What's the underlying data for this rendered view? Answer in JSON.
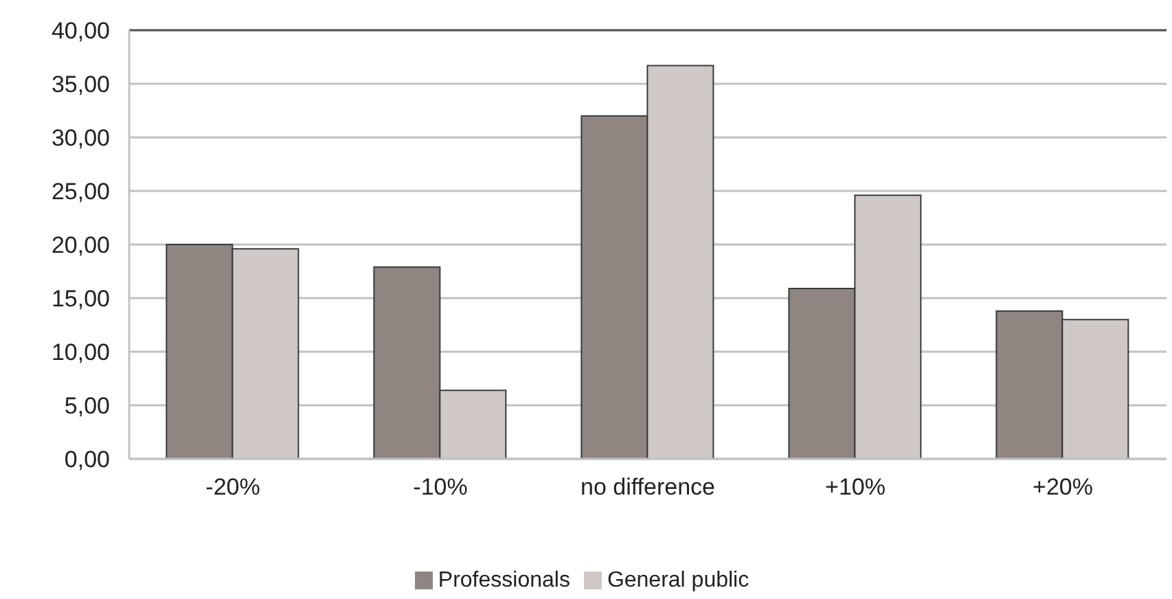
{
  "chart_data": {
    "type": "bar",
    "categories": [
      "-20%",
      "-10%",
      "no difference",
      "+10%",
      "+20%"
    ],
    "series": [
      {
        "name": "Professionals",
        "color": "#8f8682",
        "values": [
          20.0,
          17.9,
          32.0,
          15.9,
          13.8
        ]
      },
      {
        "name": "General public",
        "color": "#d0c8c6",
        "values": [
          19.6,
          6.4,
          36.7,
          24.6,
          13.0
        ]
      }
    ],
    "ylim": [
      0,
      40
    ],
    "yticks": [
      {
        "value": 0,
        "label": "0,00"
      },
      {
        "value": 5,
        "label": "5,00"
      },
      {
        "value": 10,
        "label": "10,00"
      },
      {
        "value": 15,
        "label": "15,00"
      },
      {
        "value": 20,
        "label": "20,00"
      },
      {
        "value": 25,
        "label": "25,00"
      },
      {
        "value": 30,
        "label": "30,00"
      },
      {
        "value": 35,
        "label": "35,00"
      },
      {
        "value": 40,
        "label": "40,00"
      }
    ],
    "grid": "y",
    "legend": "bottom"
  }
}
